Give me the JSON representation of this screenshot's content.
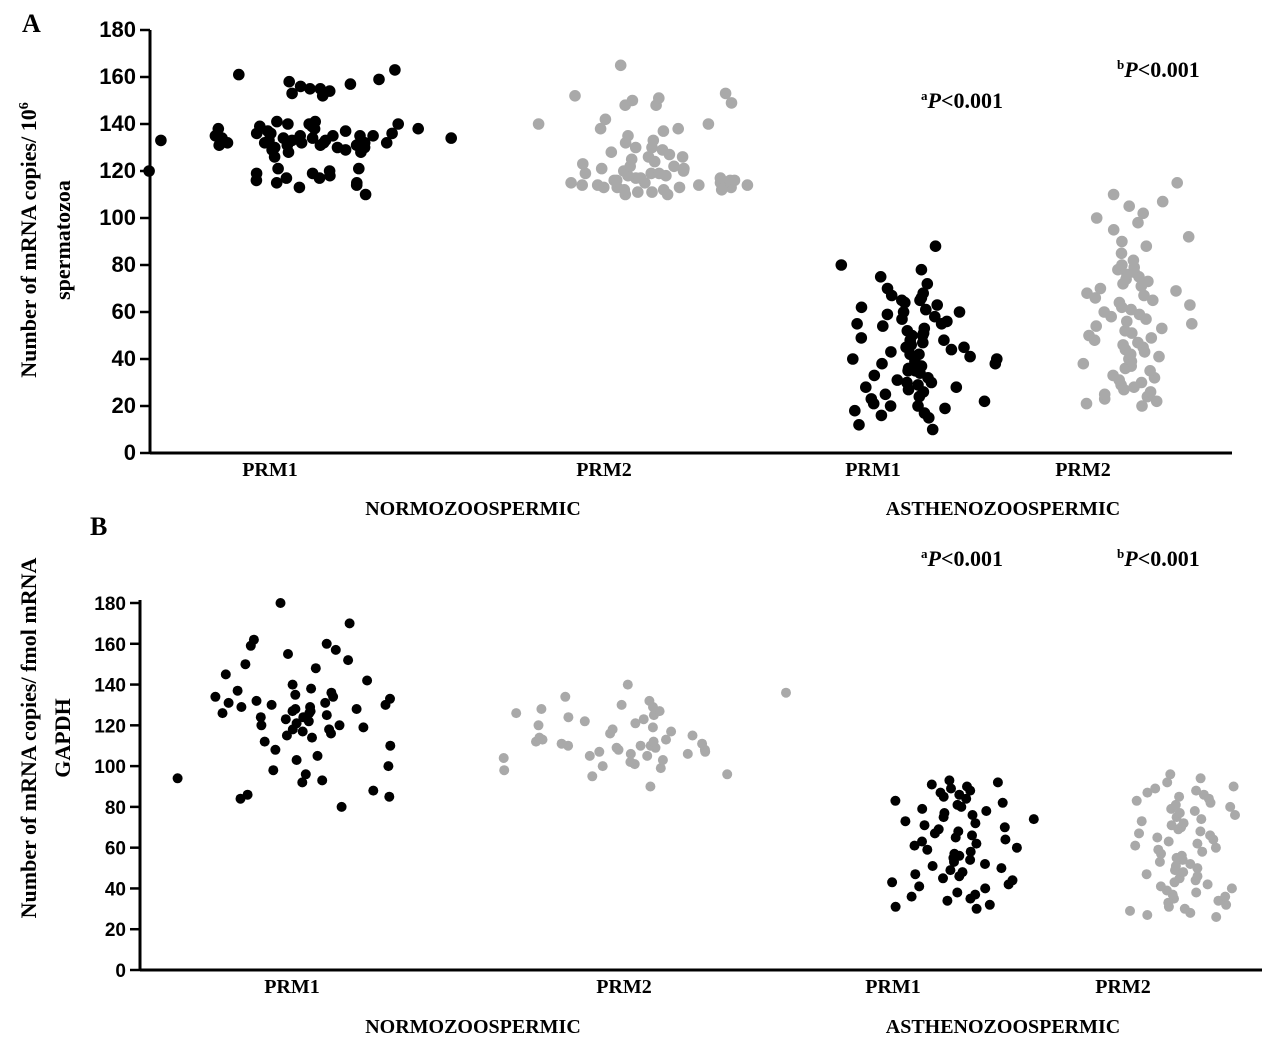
{
  "chart_data": [
    {
      "panel": "A",
      "type": "scatter",
      "ylabel_line1": "Number of mRNA copies/ 10",
      "ylabel_sup": "6",
      "ylabel_line2": "spermatozoa",
      "ylim": [
        0,
        180
      ],
      "yticks": [
        "0",
        "20",
        "40",
        "60",
        "80",
        "100",
        "120",
        "140",
        "160",
        "180"
      ],
      "group_labels": [
        "NORMOZOOSPERMIC",
        "ASTHENOZOOSPERMIC"
      ],
      "annotations": [
        {
          "sup": "a",
          "text": "<0.001",
          "p": "P"
        },
        {
          "sup": "b",
          "text": "<0.001",
          "p": "P"
        }
      ],
      "series": [
        {
          "name": "PRM1",
          "group": "NORMOZOOSPERMIC",
          "color": "#000000",
          "values": [
            110,
            113,
            114,
            115,
            115,
            116,
            117,
            117,
            118,
            119,
            119,
            120,
            120,
            121,
            121,
            126,
            128,
            128,
            129,
            129,
            130,
            130,
            130,
            131,
            131,
            131,
            131,
            132,
            132,
            132,
            132,
            132,
            132,
            133,
            133,
            133,
            133,
            133,
            134,
            134,
            134,
            134,
            135,
            135,
            135,
            135,
            135,
            136,
            136,
            136,
            137,
            137,
            138,
            138,
            138,
            139,
            139,
            140,
            140,
            140,
            141,
            141,
            152,
            153,
            154,
            155,
            155,
            156,
            157,
            158,
            159,
            161,
            163
          ]
        },
        {
          "name": "PRM2",
          "group": "NORMOZOOSPERMIC",
          "color": "#a9a9a9",
          "values": [
            110,
            110,
            111,
            111,
            112,
            112,
            112,
            113,
            113,
            113,
            113,
            114,
            114,
            114,
            114,
            115,
            115,
            115,
            115,
            116,
            116,
            116,
            116,
            117,
            117,
            117,
            118,
            118,
            119,
            119,
            119,
            120,
            120,
            121,
            121,
            122,
            122,
            123,
            124,
            125,
            126,
            126,
            127,
            128,
            129,
            130,
            130,
            132,
            133,
            135,
            137,
            138,
            138,
            140,
            140,
            142,
            148,
            148,
            149,
            150,
            151,
            152,
            153,
            165
          ]
        },
        {
          "name": "PRM1",
          "group": "ASTHENOZOOSPERMIC",
          "color": "#000000",
          "values": [
            10,
            12,
            15,
            16,
            17,
            18,
            19,
            20,
            20,
            21,
            22,
            23,
            24,
            25,
            26,
            27,
            28,
            28,
            29,
            30,
            30,
            31,
            32,
            33,
            34,
            35,
            35,
            36,
            37,
            38,
            38,
            39,
            40,
            40,
            41,
            42,
            42,
            43,
            44,
            45,
            45,
            46,
            47,
            48,
            48,
            49,
            50,
            50,
            51,
            52,
            53,
            54,
            55,
            55,
            56,
            57,
            58,
            59,
            60,
            60,
            61,
            62,
            63,
            64,
            65,
            65,
            66,
            67,
            68,
            70,
            72,
            75,
            78,
            80,
            88
          ]
        },
        {
          "name": "PRM2",
          "group": "ASTHENOZOOSPERMIC",
          "color": "#a9a9a9",
          "values": [
            20,
            21,
            22,
            23,
            24,
            25,
            26,
            27,
            28,
            29,
            30,
            31,
            32,
            33,
            35,
            36,
            37,
            38,
            39,
            40,
            41,
            42,
            43,
            44,
            45,
            46,
            47,
            48,
            49,
            50,
            51,
            52,
            53,
            54,
            55,
            56,
            57,
            58,
            59,
            60,
            61,
            62,
            63,
            64,
            65,
            66,
            67,
            68,
            69,
            70,
            71,
            72,
            73,
            74,
            75,
            76,
            77,
            78,
            79,
            80,
            82,
            85,
            88,
            90,
            92,
            95,
            98,
            100,
            102,
            105,
            107,
            110,
            115
          ]
        }
      ]
    },
    {
      "panel": "B",
      "type": "scatter",
      "ylabel_line1": "Number of mRNA copies/ fmol mRNA",
      "ylabel_line2": "GAPDH",
      "ylim": [
        0,
        180
      ],
      "yticks": [
        "0",
        "20",
        "40",
        "60",
        "80",
        "100",
        "120",
        "140",
        "160",
        "180"
      ],
      "group_labels": [
        "NORMOZOOSPERMIC",
        "ASTHENOZOOSPERMIC"
      ],
      "annotations": [
        {
          "sup": "a",
          "text": "<0.001",
          "p": "P"
        },
        {
          "sup": "b",
          "text": "<0.001",
          "p": "P"
        }
      ],
      "series": [
        {
          "name": "PRM1",
          "group": "NORMOZOOSPERMIC",
          "color": "#000000",
          "values": [
            80,
            84,
            85,
            86,
            88,
            92,
            93,
            94,
            96,
            98,
            100,
            103,
            105,
            108,
            110,
            112,
            114,
            115,
            116,
            117,
            118,
            118,
            119,
            120,
            120,
            121,
            122,
            123,
            124,
            124,
            125,
            126,
            126,
            127,
            127,
            128,
            128,
            129,
            129,
            130,
            130,
            131,
            131,
            132,
            133,
            134,
            134,
            135,
            136,
            137,
            138,
            140,
            142,
            145,
            148,
            150,
            152,
            155,
            157,
            159,
            160,
            162,
            170,
            180
          ]
        },
        {
          "name": "PRM2",
          "group": "NORMOZOOSPERMIC",
          "color": "#a9a9a9",
          "values": [
            90,
            95,
            96,
            98,
            99,
            100,
            101,
            102,
            103,
            104,
            105,
            105,
            106,
            106,
            107,
            107,
            108,
            108,
            109,
            109,
            110,
            110,
            110,
            111,
            111,
            112,
            112,
            113,
            113,
            114,
            115,
            116,
            117,
            118,
            119,
            120,
            121,
            122,
            123,
            124,
            125,
            126,
            127,
            128,
            129,
            130,
            132,
            134,
            136,
            140
          ]
        },
        {
          "name": "PRM1",
          "group": "ASTHENOZOOSPERMIC",
          "color": "#000000",
          "values": [
            30,
            31,
            32,
            34,
            35,
            36,
            37,
            38,
            40,
            41,
            42,
            43,
            44,
            45,
            46,
            47,
            48,
            49,
            50,
            51,
            52,
            53,
            54,
            55,
            56,
            57,
            58,
            59,
            60,
            61,
            62,
            63,
            64,
            65,
            66,
            67,
            68,
            69,
            70,
            71,
            72,
            73,
            74,
            75,
            76,
            77,
            78,
            79,
            80,
            81,
            82,
            83,
            84,
            85,
            86,
            87,
            88,
            89,
            90,
            91,
            92,
            93
          ]
        },
        {
          "name": "PRM2",
          "group": "ASTHENOZOOSPERMIC",
          "color": "#a9a9a9",
          "values": [
            26,
            27,
            28,
            29,
            30,
            31,
            32,
            33,
            34,
            35,
            36,
            37,
            38,
            39,
            40,
            41,
            42,
            43,
            44,
            45,
            46,
            47,
            48,
            49,
            50,
            51,
            52,
            53,
            54,
            55,
            56,
            57,
            58,
            59,
            60,
            61,
            62,
            63,
            64,
            65,
            66,
            67,
            68,
            69,
            70,
            71,
            72,
            73,
            74,
            75,
            76,
            77,
            78,
            79,
            80,
            81,
            82,
            83,
            84,
            85,
            86,
            87,
            88,
            89,
            90,
            92,
            94,
            96
          ]
        }
      ]
    }
  ]
}
